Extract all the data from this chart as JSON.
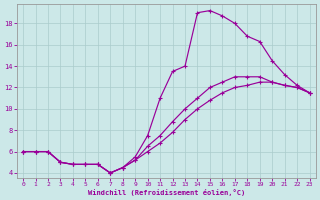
{
  "xlabel": "Windchill (Refroidissement éolien,°C)",
  "bg_color": "#cce8e8",
  "line_color": "#990099",
  "grid_color": "#aacccc",
  "xlim": [
    -0.5,
    23.5
  ],
  "ylim": [
    3.5,
    19.8
  ],
  "xticks": [
    0,
    1,
    2,
    3,
    4,
    5,
    6,
    7,
    8,
    9,
    10,
    11,
    12,
    13,
    14,
    15,
    16,
    17,
    18,
    19,
    20,
    21,
    22,
    23
  ],
  "yticks": [
    4,
    6,
    8,
    10,
    12,
    14,
    16,
    18
  ],
  "curve1_x": [
    0,
    1,
    2,
    3,
    4,
    5,
    6,
    7,
    8,
    9,
    10,
    11,
    12,
    13,
    14,
    15,
    16,
    17,
    18,
    19,
    20,
    21,
    22,
    23
  ],
  "curve1_y": [
    6,
    6,
    6,
    5,
    4.8,
    4.8,
    4.8,
    4,
    4.5,
    5.5,
    7.5,
    11,
    13.5,
    14,
    19,
    19.2,
    18.7,
    18.0,
    16.8,
    16.3,
    14.5,
    13.2,
    12.2,
    11.5
  ],
  "curve2_x": [
    0,
    1,
    2,
    3,
    4,
    5,
    6,
    7,
    8,
    9,
    10,
    11,
    12,
    13,
    14,
    15,
    16,
    17,
    18,
    19,
    20,
    21,
    22,
    23
  ],
  "curve2_y": [
    6,
    6,
    6,
    5,
    4.8,
    4.8,
    4.8,
    4,
    4.5,
    5.2,
    6.5,
    7.5,
    8.8,
    10,
    11,
    12,
    12.5,
    13,
    13,
    13,
    12.5,
    12.2,
    12,
    11.5
  ],
  "curve3_x": [
    0,
    1,
    2,
    3,
    4,
    5,
    6,
    7,
    8,
    9,
    10,
    11,
    12,
    13,
    14,
    15,
    16,
    17,
    18,
    19,
    20,
    21,
    22,
    23
  ],
  "curve3_y": [
    6,
    6,
    6,
    5,
    4.8,
    4.8,
    4.8,
    4,
    4.5,
    5.2,
    6.0,
    6.8,
    7.8,
    9,
    10,
    10.8,
    11.5,
    12,
    12.2,
    12.5,
    12.5,
    12.2,
    12,
    11.5
  ]
}
